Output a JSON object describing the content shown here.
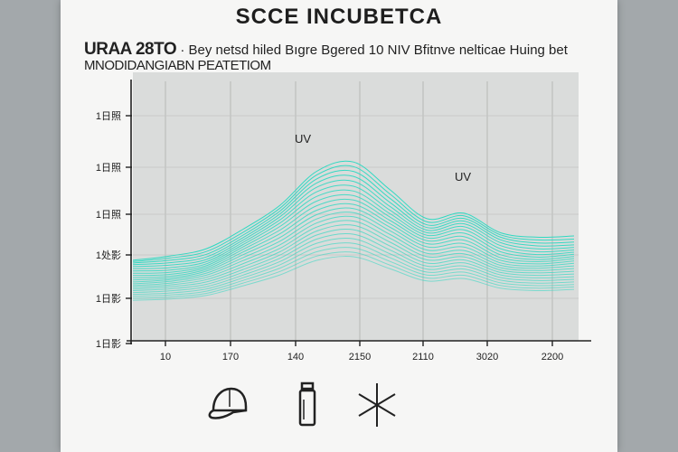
{
  "header": {
    "title": "SCCE INCUBETCA",
    "subtitle_lead": "URAA 28TO",
    "subtitle_rest": "· Bey netsd hiled Bıgre Bgered 10  NIV  Bfitnve nelticae Huing bet",
    "subtitle_line2": "MNODIDANGIABN PEATETIOM"
  },
  "chart_data": {
    "type": "area",
    "x_ticks": [
      "10",
      "170",
      "140",
      "2150",
      "2110",
      "3020",
      "2200"
    ],
    "y_ticks": [
      "1日照",
      "1日照",
      "1日照",
      "1处影",
      "1日影",
      "1日影"
    ],
    "annotations": [
      {
        "text": "UV",
        "x_index": 2.1,
        "y_value": 0.62
      },
      {
        "text": "UV",
        "x_index": 4.7,
        "y_value": 0.48
      }
    ],
    "series": [
      {
        "values": [
          0.3,
          0.31,
          0.34,
          0.42,
          0.51,
          0.63,
          0.66,
          0.56,
          0.46,
          0.48,
          0.4,
          0.38,
          0.39
        ]
      }
    ],
    "x": [
      0,
      0.5,
      1,
      1.5,
      2,
      2.5,
      3,
      3.5,
      4,
      4.5,
      5,
      5.5,
      6
    ],
    "ylim": [
      0,
      1
    ],
    "grid": true,
    "line_color": "#2fd9c2"
  },
  "icons": [
    "cap-icon",
    "bottle-icon",
    "sun-asterisk-icon"
  ]
}
